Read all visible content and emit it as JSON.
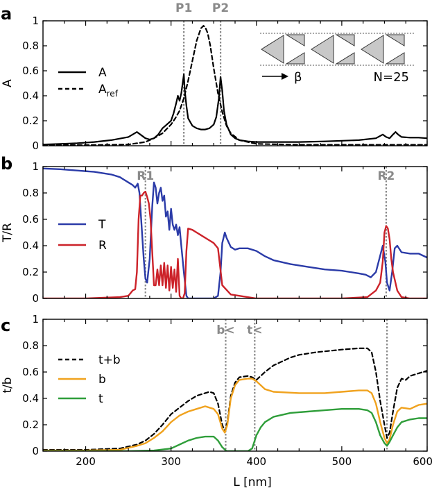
{
  "chart_data": [
    {
      "type": "line",
      "panel_letter": "a",
      "ylabel": "A",
      "xlim": [
        150,
        600
      ],
      "ylim": [
        0,
        1
      ],
      "yticks": [
        0,
        0.2,
        0.4,
        0.6,
        0.8,
        1
      ],
      "ytick_labels": [
        "0",
        "0.2",
        "0.4",
        "0.6",
        "0.8",
        "1"
      ],
      "grid": false,
      "legend_position": "left",
      "markers": [
        {
          "label": "P1",
          "x": 315
        },
        {
          "label": "P2",
          "x": 358
        }
      ],
      "inset": {
        "arrow_label": "β",
        "n_label": "N=25",
        "triangle_cells": 3
      },
      "series": [
        {
          "name": "A",
          "label_main": "A",
          "label_sub": "",
          "color": "#000000",
          "dash": "solid",
          "x": [
            150,
            170,
            190,
            210,
            230,
            250,
            255,
            260,
            265,
            270,
            275,
            280,
            285,
            290,
            295,
            300,
            303,
            306,
            308,
            310,
            312,
            314,
            315,
            316,
            318,
            320,
            325,
            330,
            335,
            340,
            345,
            350,
            353,
            356,
            358,
            360,
            362,
            365,
            370,
            375,
            380,
            390,
            400,
            420,
            450,
            480,
            500,
            520,
            540,
            548,
            552,
            556,
            560,
            563,
            566,
            570,
            580,
            590,
            600
          ],
          "y": [
            0.01,
            0.015,
            0.02,
            0.03,
            0.045,
            0.07,
            0.09,
            0.11,
            0.085,
            0.06,
            0.05,
            0.06,
            0.09,
            0.14,
            0.17,
            0.2,
            0.26,
            0.34,
            0.4,
            0.36,
            0.42,
            0.52,
            0.57,
            0.45,
            0.32,
            0.22,
            0.16,
            0.14,
            0.13,
            0.13,
            0.14,
            0.17,
            0.23,
            0.38,
            0.55,
            0.44,
            0.28,
            0.17,
            0.09,
            0.06,
            0.045,
            0.035,
            0.03,
            0.03,
            0.03,
            0.035,
            0.04,
            0.045,
            0.06,
            0.09,
            0.07,
            0.06,
            0.09,
            0.11,
            0.09,
            0.07,
            0.065,
            0.065,
            0.06
          ]
        },
        {
          "name": "Aref",
          "label_main": "A",
          "label_sub": "ref",
          "color": "#000000",
          "dash": "dashed",
          "x": [
            150,
            200,
            250,
            270,
            280,
            290,
            300,
            305,
            310,
            315,
            320,
            325,
            330,
            335,
            338,
            340,
            343,
            346,
            350,
            355,
            360,
            365,
            370,
            380,
            400,
            450,
            500,
            550,
            600
          ],
          "y": [
            0.005,
            0.005,
            0.01,
            0.03,
            0.06,
            0.1,
            0.17,
            0.22,
            0.28,
            0.38,
            0.52,
            0.68,
            0.84,
            0.94,
            0.96,
            0.95,
            0.9,
            0.8,
            0.62,
            0.42,
            0.27,
            0.16,
            0.1,
            0.045,
            0.015,
            0.008,
            0.008,
            0.008,
            0.008
          ]
        }
      ]
    },
    {
      "type": "line",
      "panel_letter": "b",
      "ylabel": "T/R",
      "xlim": [
        150,
        600
      ],
      "ylim": [
        0,
        1
      ],
      "yticks": [
        0,
        0.2,
        0.4,
        0.6,
        0.8,
        1
      ],
      "ytick_labels": [
        "0",
        "0.2",
        "0.4",
        "0.6",
        "0.8",
        "1"
      ],
      "grid": false,
      "legend_position": "left",
      "markers": [
        {
          "label": "R1",
          "x": 270
        },
        {
          "label": "R2",
          "x": 552
        }
      ],
      "series": [
        {
          "name": "T",
          "label_main": "T",
          "label_sub": "",
          "color": "#2b3ba8",
          "dash": "solid",
          "x": [
            150,
            170,
            190,
            210,
            230,
            240,
            245,
            250,
            255,
            258,
            261,
            263,
            265,
            268,
            270,
            272,
            275,
            278,
            280,
            282,
            284,
            286,
            288,
            290,
            292,
            294,
            296,
            298,
            300,
            302,
            304,
            306,
            308,
            310,
            312,
            315,
            318,
            320,
            330,
            340,
            350,
            355,
            358,
            360,
            363,
            365,
            370,
            375,
            380,
            390,
            400,
            410,
            420,
            440,
            460,
            480,
            500,
            510,
            520,
            528,
            534,
            540,
            544,
            548,
            551,
            553,
            556,
            559,
            562,
            565,
            570,
            580,
            590,
            600
          ],
          "y": [
            0.985,
            0.98,
            0.97,
            0.96,
            0.94,
            0.92,
            0.9,
            0.88,
            0.86,
            0.84,
            0.87,
            0.8,
            0.6,
            0.3,
            0.15,
            0.12,
            0.3,
            0.7,
            0.88,
            0.84,
            0.72,
            0.8,
            0.84,
            0.74,
            0.78,
            0.62,
            0.66,
            0.52,
            0.68,
            0.56,
            0.52,
            0.56,
            0.48,
            0.54,
            0.4,
            0.2,
            0.02,
            0,
            0,
            0,
            0,
            0.02,
            0.2,
            0.42,
            0.5,
            0.46,
            0.39,
            0.37,
            0.38,
            0.38,
            0.36,
            0.32,
            0.29,
            0.26,
            0.24,
            0.22,
            0.21,
            0.2,
            0.19,
            0.18,
            0.16,
            0.2,
            0.3,
            0.4,
            0.28,
            0.12,
            0.06,
            0.2,
            0.38,
            0.4,
            0.35,
            0.34,
            0.34,
            0.31
          ]
        },
        {
          "name": "R",
          "label_main": "R",
          "label_sub": "",
          "color": "#cc2229",
          "dash": "solid",
          "x": [
            150,
            200,
            240,
            250,
            255,
            258,
            260,
            262,
            264,
            266,
            268,
            270,
            272,
            274,
            276,
            278,
            280,
            282,
            284,
            286,
            288,
            290,
            292,
            294,
            296,
            298,
            300,
            302,
            304,
            306,
            308,
            310,
            312,
            314,
            316,
            318,
            320,
            325,
            330,
            335,
            340,
            345,
            350,
            355,
            360,
            370,
            400,
            450,
            500,
            530,
            540,
            545,
            548,
            550,
            552,
            554,
            556,
            558,
            560,
            565,
            570,
            580,
            600
          ],
          "y": [
            0,
            0,
            0.01,
            0.02,
            0.06,
            0.07,
            0.2,
            0.6,
            0.78,
            0.78,
            0.8,
            0.81,
            0.77,
            0.72,
            0.6,
            0.35,
            0.1,
            0.1,
            0.22,
            0.1,
            0.25,
            0.1,
            0.27,
            0.08,
            0.25,
            0.06,
            0.24,
            0.08,
            0.22,
            0.05,
            0.3,
            0.02,
            0,
            0,
            0.04,
            0.36,
            0.53,
            0.52,
            0.5,
            0.48,
            0.46,
            0.44,
            0.42,
            0.38,
            0.1,
            0.03,
            0,
            0,
            0,
            0.01,
            0.06,
            0.12,
            0.28,
            0.5,
            0.55,
            0.53,
            0.45,
            0.3,
            0.2,
            0.06,
            0.01,
            0,
            0
          ]
        }
      ]
    },
    {
      "type": "line",
      "panel_letter": "c",
      "xlabel": "L [nm]",
      "ylabel": "t/b",
      "xlim": [
        150,
        600
      ],
      "ylim": [
        0,
        1
      ],
      "xticks": [
        200,
        300,
        400,
        500,
        600
      ],
      "xtick_labels": [
        "200",
        "300",
        "400",
        "500",
        "600"
      ],
      "yticks": [
        0,
        0.2,
        0.4,
        0.6,
        0.8,
        1
      ],
      "ytick_labels": [
        "0",
        "0.2",
        "0.4",
        "0.6",
        "0.8",
        "1"
      ],
      "grid": false,
      "legend_position": "left",
      "markers": [
        {
          "label": "b<",
          "x": 364
        },
        {
          "label": "t<",
          "x": 398
        },
        {
          "label": "",
          "x": 553
        }
      ],
      "series": [
        {
          "name": "t+b",
          "label_main": "t+b",
          "label_sub": "",
          "color": "#000000",
          "dash": "dashed",
          "x": [
            150,
            200,
            240,
            260,
            270,
            280,
            290,
            300,
            310,
            320,
            330,
            340,
            345,
            350,
            355,
            360,
            363,
            366,
            370,
            375,
            380,
            390,
            395,
            400,
            410,
            420,
            430,
            440,
            450,
            470,
            500,
            520,
            530,
            535,
            540,
            545,
            550,
            553,
            556,
            560,
            565,
            570,
            575,
            580,
            590,
            600
          ],
          "y": [
            0.01,
            0.01,
            0.02,
            0.05,
            0.08,
            0.13,
            0.2,
            0.28,
            0.33,
            0.38,
            0.42,
            0.44,
            0.45,
            0.44,
            0.36,
            0.2,
            0.15,
            0.22,
            0.42,
            0.52,
            0.56,
            0.57,
            0.56,
            0.54,
            0.6,
            0.65,
            0.68,
            0.71,
            0.73,
            0.75,
            0.77,
            0.78,
            0.78,
            0.75,
            0.6,
            0.38,
            0.2,
            0.1,
            0.14,
            0.3,
            0.48,
            0.55,
            0.54,
            0.57,
            0.59,
            0.61
          ]
        },
        {
          "name": "b",
          "label_main": "b",
          "label_sub": "",
          "color": "#f0a21e",
          "dash": "solid",
          "x": [
            150,
            200,
            240,
            260,
            270,
            280,
            290,
            300,
            310,
            320,
            330,
            340,
            345,
            350,
            355,
            360,
            363,
            366,
            370,
            375,
            380,
            390,
            395,
            400,
            410,
            420,
            450,
            480,
            500,
            520,
            530,
            535,
            540,
            545,
            550,
            553,
            556,
            560,
            565,
            570,
            580,
            590,
            600
          ],
          "y": [
            0.005,
            0.005,
            0.01,
            0.04,
            0.06,
            0.1,
            0.15,
            0.22,
            0.27,
            0.3,
            0.32,
            0.34,
            0.33,
            0.32,
            0.28,
            0.17,
            0.14,
            0.2,
            0.4,
            0.5,
            0.54,
            0.55,
            0.55,
            0.53,
            0.47,
            0.45,
            0.44,
            0.44,
            0.45,
            0.46,
            0.46,
            0.44,
            0.36,
            0.22,
            0.1,
            0.06,
            0.09,
            0.2,
            0.3,
            0.33,
            0.32,
            0.35,
            0.36
          ]
        },
        {
          "name": "t",
          "label_main": "t",
          "label_sub": "",
          "color": "#2f9e3a",
          "dash": "solid",
          "x": [
            150,
            250,
            280,
            300,
            310,
            320,
            330,
            340,
            350,
            355,
            360,
            365,
            370,
            380,
            390,
            395,
            400,
            405,
            410,
            420,
            440,
            460,
            480,
            500,
            520,
            530,
            535,
            540,
            545,
            550,
            553,
            556,
            560,
            565,
            570,
            580,
            590,
            600
          ],
          "y": [
            0,
            0,
            0.005,
            0.02,
            0.05,
            0.08,
            0.1,
            0.11,
            0.11,
            0.08,
            0.03,
            0,
            0,
            0,
            0,
            0.02,
            0.12,
            0.18,
            0.22,
            0.26,
            0.29,
            0.3,
            0.31,
            0.32,
            0.32,
            0.31,
            0.29,
            0.22,
            0.12,
            0.06,
            0.04,
            0.07,
            0.12,
            0.18,
            0.22,
            0.24,
            0.25,
            0.25
          ]
        }
      ]
    }
  ]
}
